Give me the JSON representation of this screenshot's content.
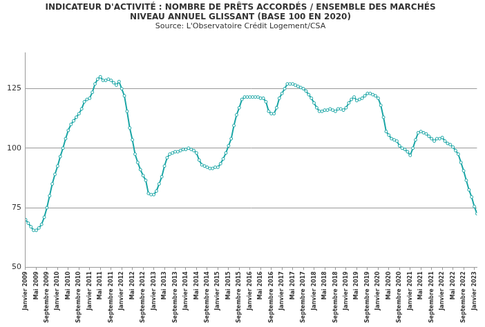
{
  "chart_data": {
    "type": "line",
    "title": [
      "INDICATEUR D'ACTIVITÉ : NOMBRE DE PRÊTS ACCORDÉS / ENSEMBLE DES MARCHÉS",
      "NIVEAU ANNUEL GLISSANT (BASE 100 EN 2020)"
    ],
    "subtitle": "Source: L'Observatoire Crédit Logement/CSA",
    "categories": [
      "Janvier 2009",
      null,
      null,
      null,
      "Mai 2009",
      null,
      null,
      null,
      "Septembre 2009",
      null,
      null,
      null,
      "Janvier 2010",
      null,
      null,
      null,
      "Mai 2010",
      null,
      null,
      null,
      "Septembre 2010",
      null,
      null,
      null,
      "Janvier 2011",
      null,
      null,
      null,
      "Mai 2011",
      null,
      null,
      null,
      "Septembre 2011",
      null,
      null,
      null,
      "Janvier 2012",
      null,
      null,
      null,
      "Mai 2012",
      null,
      null,
      null,
      "Septembre 2012",
      null,
      null,
      null,
      "Janvier 2013",
      null,
      null,
      null,
      "Mai 2013",
      null,
      null,
      null,
      "Septembre 2013",
      null,
      null,
      null,
      "Janvier 2014",
      null,
      null,
      null,
      "Mai 2014",
      null,
      null,
      null,
      "Septembre 2014",
      null,
      null,
      null,
      "Janvier 2015",
      null,
      null,
      null,
      "Mai 2015",
      null,
      null,
      null,
      "Septembre 2015",
      null,
      null,
      null,
      "Janvier 2016",
      null,
      null,
      null,
      "Mai 2016",
      null,
      null,
      null,
      "Septembre 2016",
      null,
      null,
      null,
      "Janvier 2017",
      null,
      null,
      null,
      "Mai 2017",
      null,
      null,
      null,
      "Septembre 2017",
      null,
      null,
      null,
      "Janvier 2018",
      null,
      null,
      null,
      "Mai 2018",
      null,
      null,
      null,
      "Septembre 2018",
      null,
      null,
      null,
      "Janvier 2019",
      null,
      null,
      null,
      "Mai 2019",
      null,
      null,
      null,
      "Septembre 2019",
      null,
      null,
      null,
      "Janvier 2020",
      null,
      null,
      null,
      "Mai 2020",
      null,
      null,
      null,
      "Septembre 2020",
      null,
      null,
      null,
      "Janvier 2021",
      null,
      null,
      null,
      "Mai 2021",
      null,
      null,
      null,
      "Septembre 2021",
      null,
      null,
      null,
      "Janvier 2022",
      null,
      null,
      null,
      "Mai 2022",
      null,
      null,
      null,
      "Septembre 2022",
      null,
      null,
      null,
      "Janvier 2023",
      null
    ],
    "values": [
      70,
      68.5,
      67,
      65.5,
      65.5,
      66.5,
      68,
      71,
      75,
      80,
      85,
      89,
      92.5,
      96.5,
      100,
      104,
      107.5,
      110,
      111.5,
      113,
      114.5,
      116.5,
      119.5,
      120.5,
      121,
      123.5,
      127,
      129,
      130,
      128.5,
      128.5,
      129,
      128.5,
      127.5,
      126.5,
      128,
      125,
      122,
      115.5,
      108.5,
      103.5,
      97.5,
      94,
      91,
      88.5,
      86.5,
      81,
      80.5,
      80.5,
      82,
      85,
      88,
      92.5,
      96,
      97.5,
      98,
      98.5,
      98.5,
      99,
      99.5,
      99.5,
      100,
      99.5,
      99,
      98,
      95,
      93,
      92.5,
      92,
      91.5,
      91.5,
      92,
      92,
      93.5,
      95.5,
      98,
      101,
      104,
      109.5,
      114,
      117,
      120.5,
      121.5,
      121.5,
      121.5,
      121.5,
      121.5,
      121.5,
      121,
      121,
      119.5,
      115.5,
      114.5,
      114.5,
      117,
      121,
      123,
      125,
      127,
      127,
      127,
      126.5,
      126,
      125.5,
      125,
      124,
      122.5,
      121,
      119,
      117,
      115.5,
      115.5,
      116,
      116,
      116.5,
      116,
      115.5,
      116.5,
      116.5,
      116,
      117,
      119,
      120.5,
      121.5,
      120,
      120.5,
      121,
      122,
      123,
      123,
      122.5,
      122,
      121,
      118,
      113,
      107,
      105.5,
      104,
      103.5,
      103,
      101,
      100,
      99.5,
      98.5,
      97,
      100,
      103.5,
      106.5,
      107,
      106.5,
      106,
      105,
      104,
      103,
      104,
      104,
      104.5,
      103,
      102,
      101.5,
      100.5,
      99,
      97.5,
      94,
      90.5,
      86.5,
      82.5,
      79.5,
      75.5,
      72.5
    ],
    "color": "#1aa5a5",
    "marker": "circle",
    "ylim": [
      50,
      140
    ],
    "yticks": [
      50,
      75,
      100,
      125
    ],
    "grid": true
  }
}
